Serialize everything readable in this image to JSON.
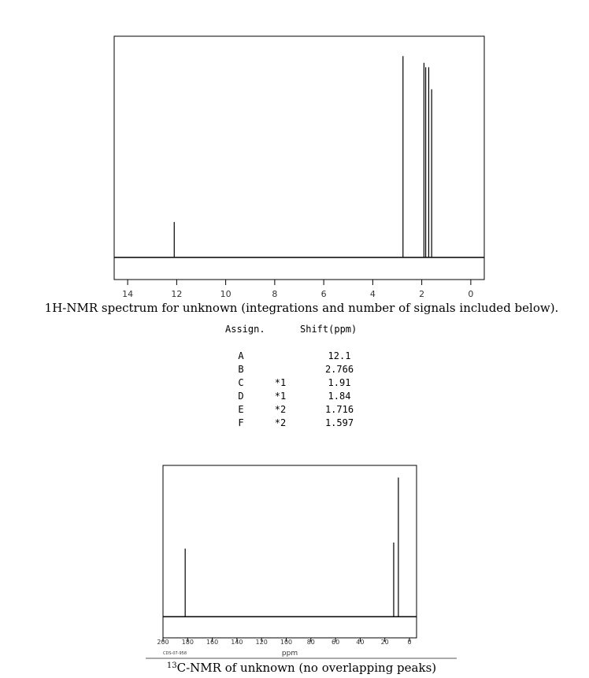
{
  "chart_data": [
    {
      "type": "spectrum",
      "caption": "1H-NMR spectrum for unknown (integrations and number of signals included below).",
      "x": [
        12.1,
        2.766,
        1.91,
        1.84,
        1.716,
        1.597
      ],
      "values": [
        16,
        91,
        88,
        86,
        86,
        76
      ],
      "color": "#000000",
      "xlim": [
        14.55,
        -0.55
      ],
      "ylim": [
        -10,
        100
      ],
      "xticks": [
        14,
        12,
        10,
        8,
        6,
        4,
        2,
        0
      ]
    },
    {
      "type": "spectrum",
      "caption_sup": "13",
      "caption": "C-NMR of unknown (no overlapping peaks)",
      "xlabel": "ppm",
      "code": "CDS-07-958",
      "x": [
        182,
        12.8,
        9
      ],
      "values": [
        45,
        49,
        92
      ],
      "color": "#000000",
      "xlim": [
        200,
        -5.75
      ],
      "ylim": [
        -14,
        100
      ],
      "xticks": [
        200,
        180,
        160,
        140,
        120,
        100,
        80,
        60,
        40,
        20,
        0
      ]
    }
  ],
  "table": {
    "headers": [
      "Assign.",
      "Shift(ppm)"
    ],
    "rows": [
      {
        "label": "A",
        "shift": "12.1"
      },
      {
        "label": "B",
        "shift": "2.766"
      },
      {
        "label": "C",
        "note": "*1",
        "shift": "1.91"
      },
      {
        "label": "D",
        "note": "*1",
        "shift": "1.84"
      },
      {
        "label": "E",
        "note": "*2",
        "shift": "1.716"
      },
      {
        "label": "F",
        "note": "*2",
        "shift": "1.597"
      }
    ]
  }
}
